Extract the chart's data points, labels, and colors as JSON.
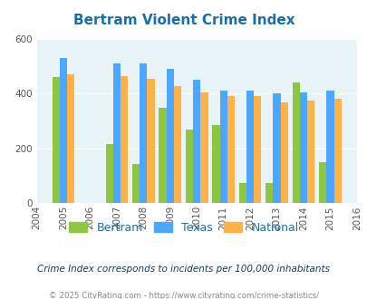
{
  "title": "Bertram Violent Crime Index",
  "subtitle": "Crime Index corresponds to incidents per 100,000 inhabitants",
  "footer": "© 2025 CityRating.com - https://www.cityrating.com/crime-statistics/",
  "years": [
    2005,
    2007,
    2008,
    2009,
    2010,
    2011,
    2012,
    2013,
    2014,
    2015
  ],
  "bertram": [
    460,
    215,
    145,
    348,
    268,
    285,
    75,
    75,
    440,
    150
  ],
  "texas": [
    530,
    510,
    510,
    490,
    450,
    410,
    410,
    400,
    405,
    412
  ],
  "national": [
    470,
    465,
    455,
    428,
    405,
    390,
    390,
    368,
    375,
    383
  ],
  "color_bertram": "#8dc63f",
  "color_texas": "#4da6ff",
  "color_national": "#ffb347",
  "bg_color": "#e8f4f8",
  "title_color": "#1a6fa8",
  "subtitle_color": "#1a3a5c",
  "footer_color": "#888888",
  "legend_color": "#1a6fa8",
  "ylim": [
    0,
    600
  ],
  "yticks": [
    0,
    200,
    400,
    600
  ],
  "xmin": 2004,
  "xmax": 2016,
  "bar_width": 0.28
}
